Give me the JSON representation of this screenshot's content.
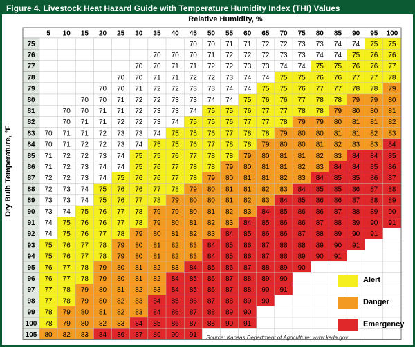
{
  "title": "Figure 4. Livestock Heat Hazard Guide with Temperature Humidity Index (THI) Values",
  "column_axis_label": "Relative Humidity, %",
  "row_axis_label": "Dry Bulb Temperature, °F",
  "source": "Source: Kansas Department of Agriculture; www.ksda.gov",
  "colors": {
    "border": "#0b5a33",
    "alert": "#f6ef1e",
    "danger": "#f39a22",
    "emergency": "#e0282b",
    "header_fill": "#ffffff",
    "row_header_fill": "#dfe7e0"
  },
  "thresholds": {
    "alert_min": 75,
    "danger_min": 79,
    "emergency_min": 84
  },
  "legend": [
    {
      "label": "Alert",
      "color": "#f6ef1e"
    },
    {
      "label": "Danger",
      "color": "#f39a22"
    },
    {
      "label": "Emergency",
      "color": "#e0282b"
    }
  ],
  "chart_data": {
    "type": "table",
    "humidity": [
      5,
      10,
      15,
      20,
      25,
      30,
      35,
      40,
      45,
      50,
      55,
      60,
      65,
      70,
      75,
      80,
      85,
      90,
      95,
      100
    ],
    "temperatures": [
      75,
      76,
      77,
      78,
      79,
      80,
      81,
      82,
      83,
      84,
      85,
      86,
      87,
      88,
      89,
      90,
      91,
      92,
      93,
      94,
      95,
      96,
      97,
      98,
      99,
      100,
      105
    ],
    "rows": [
      [
        null,
        null,
        null,
        null,
        null,
        null,
        null,
        null,
        70,
        70,
        71,
        71,
        72,
        72,
        73,
        73,
        74,
        74,
        75,
        75
      ],
      [
        null,
        null,
        null,
        null,
        null,
        null,
        70,
        70,
        70,
        71,
        72,
        72,
        72,
        73,
        73,
        74,
        74,
        75,
        76,
        76
      ],
      [
        null,
        null,
        null,
        null,
        null,
        70,
        70,
        71,
        71,
        72,
        72,
        73,
        73,
        74,
        74,
        75,
        75,
        76,
        76,
        77
      ],
      [
        null,
        null,
        null,
        null,
        70,
        70,
        71,
        71,
        72,
        72,
        73,
        74,
        74,
        75,
        75,
        76,
        76,
        77,
        77,
        78
      ],
      [
        null,
        null,
        null,
        70,
        70,
        71,
        72,
        72,
        73,
        73,
        74,
        74,
        75,
        75,
        76,
        77,
        77,
        78,
        78,
        79
      ],
      [
        null,
        null,
        70,
        70,
        71,
        72,
        72,
        73,
        73,
        74,
        74,
        75,
        76,
        76,
        77,
        78,
        78,
        79,
        79,
        80
      ],
      [
        null,
        70,
        70,
        71,
        71,
        72,
        73,
        73,
        74,
        75,
        75,
        76,
        77,
        77,
        78,
        78,
        79,
        80,
        80,
        81
      ],
      [
        null,
        70,
        71,
        71,
        72,
        72,
        73,
        74,
        75,
        75,
        76,
        77,
        77,
        78,
        79,
        79,
        80,
        81,
        81,
        82
      ],
      [
        70,
        71,
        71,
        72,
        73,
        73,
        74,
        75,
        75,
        76,
        77,
        78,
        78,
        79,
        80,
        80,
        81,
        81,
        82,
        83
      ],
      [
        70,
        71,
        72,
        72,
        73,
        74,
        75,
        75,
        76,
        77,
        78,
        78,
        79,
        80,
        80,
        81,
        82,
        83,
        83,
        84
      ],
      [
        71,
        72,
        72,
        73,
        74,
        75,
        75,
        76,
        77,
        78,
        78,
        79,
        80,
        81,
        81,
        82,
        83,
        84,
        84,
        85
      ],
      [
        71,
        72,
        73,
        74,
        74,
        75,
        76,
        77,
        78,
        78,
        79,
        80,
        81,
        81,
        82,
        83,
        84,
        84,
        85,
        86
      ],
      [
        72,
        72,
        73,
        74,
        75,
        76,
        76,
        77,
        78,
        79,
        80,
        81,
        81,
        82,
        83,
        84,
        85,
        85,
        86,
        87
      ],
      [
        72,
        73,
        74,
        75,
        76,
        76,
        77,
        78,
        79,
        80,
        81,
        81,
        82,
        83,
        84,
        85,
        85,
        86,
        87,
        88
      ],
      [
        73,
        73,
        74,
        75,
        76,
        77,
        78,
        79,
        80,
        80,
        81,
        82,
        83,
        84,
        85,
        86,
        86,
        87,
        88,
        89
      ],
      [
        73,
        74,
        75,
        76,
        77,
        78,
        79,
        79,
        80,
        81,
        82,
        83,
        84,
        85,
        86,
        86,
        87,
        88,
        89,
        90
      ],
      [
        74,
        75,
        76,
        76,
        77,
        78,
        79,
        80,
        81,
        82,
        83,
        84,
        85,
        86,
        86,
        87,
        88,
        89,
        90,
        91
      ],
      [
        74,
        75,
        76,
        77,
        78,
        79,
        80,
        81,
        82,
        83,
        84,
        85,
        86,
        86,
        87,
        88,
        89,
        90,
        91,
        null
      ],
      [
        75,
        76,
        77,
        78,
        79,
        80,
        81,
        82,
        83,
        84,
        85,
        86,
        87,
        88,
        88,
        89,
        90,
        91,
        null,
        null
      ],
      [
        75,
        76,
        77,
        78,
        79,
        80,
        81,
        82,
        83,
        84,
        85,
        86,
        87,
        88,
        89,
        90,
        91,
        null,
        null,
        null
      ],
      [
        76,
        77,
        78,
        79,
        80,
        81,
        82,
        83,
        84,
        85,
        86,
        87,
        88,
        89,
        90,
        null,
        null,
        null,
        null,
        null
      ],
      [
        76,
        77,
        78,
        79,
        80,
        81,
        82,
        84,
        85,
        86,
        87,
        88,
        89,
        90,
        null,
        null,
        null,
        null,
        null,
        null
      ],
      [
        77,
        78,
        79,
        80,
        81,
        82,
        83,
        84,
        85,
        86,
        87,
        88,
        90,
        91,
        null,
        null,
        null,
        null,
        null,
        null
      ],
      [
        77,
        78,
        79,
        80,
        82,
        83,
        84,
        85,
        86,
        87,
        88,
        89,
        90,
        null,
        null,
        null,
        null,
        null,
        null,
        null
      ],
      [
        78,
        79,
        80,
        81,
        82,
        83,
        84,
        86,
        87,
        88,
        89,
        90,
        null,
        null,
        null,
        null,
        null,
        null,
        null,
        null
      ],
      [
        78,
        79,
        80,
        82,
        83,
        84,
        85,
        86,
        87,
        88,
        90,
        91,
        null,
        null,
        null,
        null,
        null,
        null,
        null,
        null
      ],
      [
        80,
        82,
        83,
        84,
        86,
        87,
        89,
        90,
        91,
        null,
        null,
        null,
        null,
        null,
        null,
        null,
        null,
        null,
        null,
        null
      ]
    ]
  }
}
